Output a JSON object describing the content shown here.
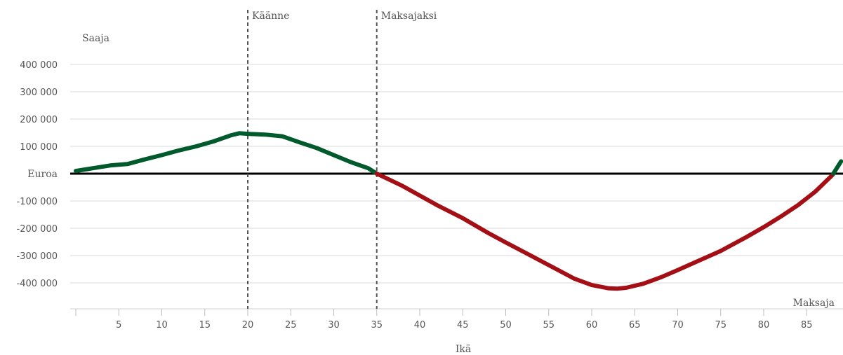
{
  "chart_data": {
    "type": "line",
    "xlabel": "Ikä",
    "ylabel_center": "Euroa",
    "label_top": "Saaja",
    "label_bottom": "Maksaja",
    "x_ticks": [
      5,
      10,
      15,
      20,
      25,
      30,
      35,
      40,
      45,
      50,
      55,
      60,
      65,
      70,
      75,
      80,
      85
    ],
    "y_ticks": [
      {
        "value": 400000,
        "label": "400 000"
      },
      {
        "value": 300000,
        "label": "300 000"
      },
      {
        "value": 200000,
        "label": "200 000"
      },
      {
        "value": 100000,
        "label": "100 000"
      },
      {
        "value": 0,
        "label": "Euroa"
      },
      {
        "value": -100000,
        "label": "-100 000"
      },
      {
        "value": -200000,
        "label": "-200 000"
      },
      {
        "value": -300000,
        "label": "-300 000"
      },
      {
        "value": -400000,
        "label": "-400 000"
      }
    ],
    "xlim": [
      0,
      89
    ],
    "ylim": [
      -500000,
      430000
    ],
    "markers": [
      {
        "x": 20,
        "label": "Käänne"
      },
      {
        "x": 35,
        "label": "Maksajaksi"
      }
    ],
    "colors": {
      "positive": "#005a2b",
      "negative": "#a30f14",
      "zero_line": "#000000",
      "marker": "#555555"
    },
    "series": [
      {
        "x": [
          0,
          2,
          4,
          6,
          8,
          10,
          12,
          14,
          16,
          18,
          19,
          20,
          22,
          24,
          26,
          28,
          30,
          32,
          34,
          35,
          38,
          40,
          42,
          45,
          48,
          50,
          52,
          55,
          58,
          60,
          62,
          63,
          64,
          66,
          68,
          70,
          72,
          75,
          78,
          80,
          82,
          84,
          86,
          88,
          89
        ],
        "y": [
          10000,
          20000,
          30000,
          35000,
          52000,
          68000,
          85000,
          100000,
          118000,
          140000,
          148000,
          146000,
          143000,
          137000,
          115000,
          94000,
          68000,
          42000,
          20000,
          0,
          -45000,
          -80000,
          -115000,
          -163000,
          -218000,
          -252000,
          -285000,
          -335000,
          -385000,
          -408000,
          -420000,
          -421000,
          -418000,
          -403000,
          -380000,
          -353000,
          -325000,
          -283000,
          -232000,
          -196000,
          -157000,
          -115000,
          -66000,
          -5000,
          45000
        ]
      }
    ]
  }
}
